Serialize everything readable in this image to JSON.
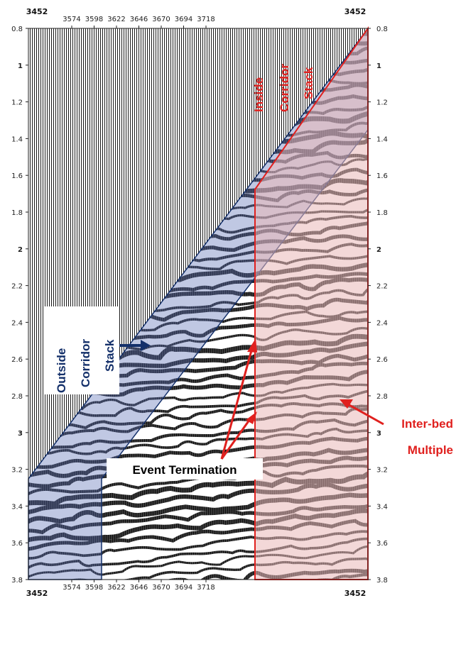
{
  "axes": {
    "x_ticks_top": [
      "3574",
      "3598",
      "3622",
      "3646",
      "3670",
      "3694",
      "3718"
    ],
    "x_ticks_bottom": [
      "3574",
      "3598",
      "3622",
      "3646",
      "3670",
      "3694",
      "3718"
    ],
    "x_end_left": "3452",
    "x_end_right": "3452",
    "y_ticks": [
      "0.8",
      "1",
      "1.2",
      "1.4",
      "1.6",
      "1.8",
      "2",
      "2.2",
      "2.4",
      "2.6",
      "2.8",
      "3",
      "3.2",
      "3.4",
      "3.6",
      "3.8"
    ],
    "y_bold": [
      "1",
      "2",
      "3"
    ]
  },
  "annotations": {
    "inside_corridor": [
      "Inside",
      "Corridor",
      "Stack"
    ],
    "outside_corridor": [
      "Outside",
      "Corridor",
      "Stack"
    ],
    "event_termination": "Event Termination",
    "inter_bed": [
      "Inter-bed",
      "Multiple"
    ]
  },
  "colors": {
    "red": "#e0201e",
    "navy": "#14306a",
    "blue_fill": "#5a6fb5",
    "pink_fill": "#c9a0a0"
  }
}
